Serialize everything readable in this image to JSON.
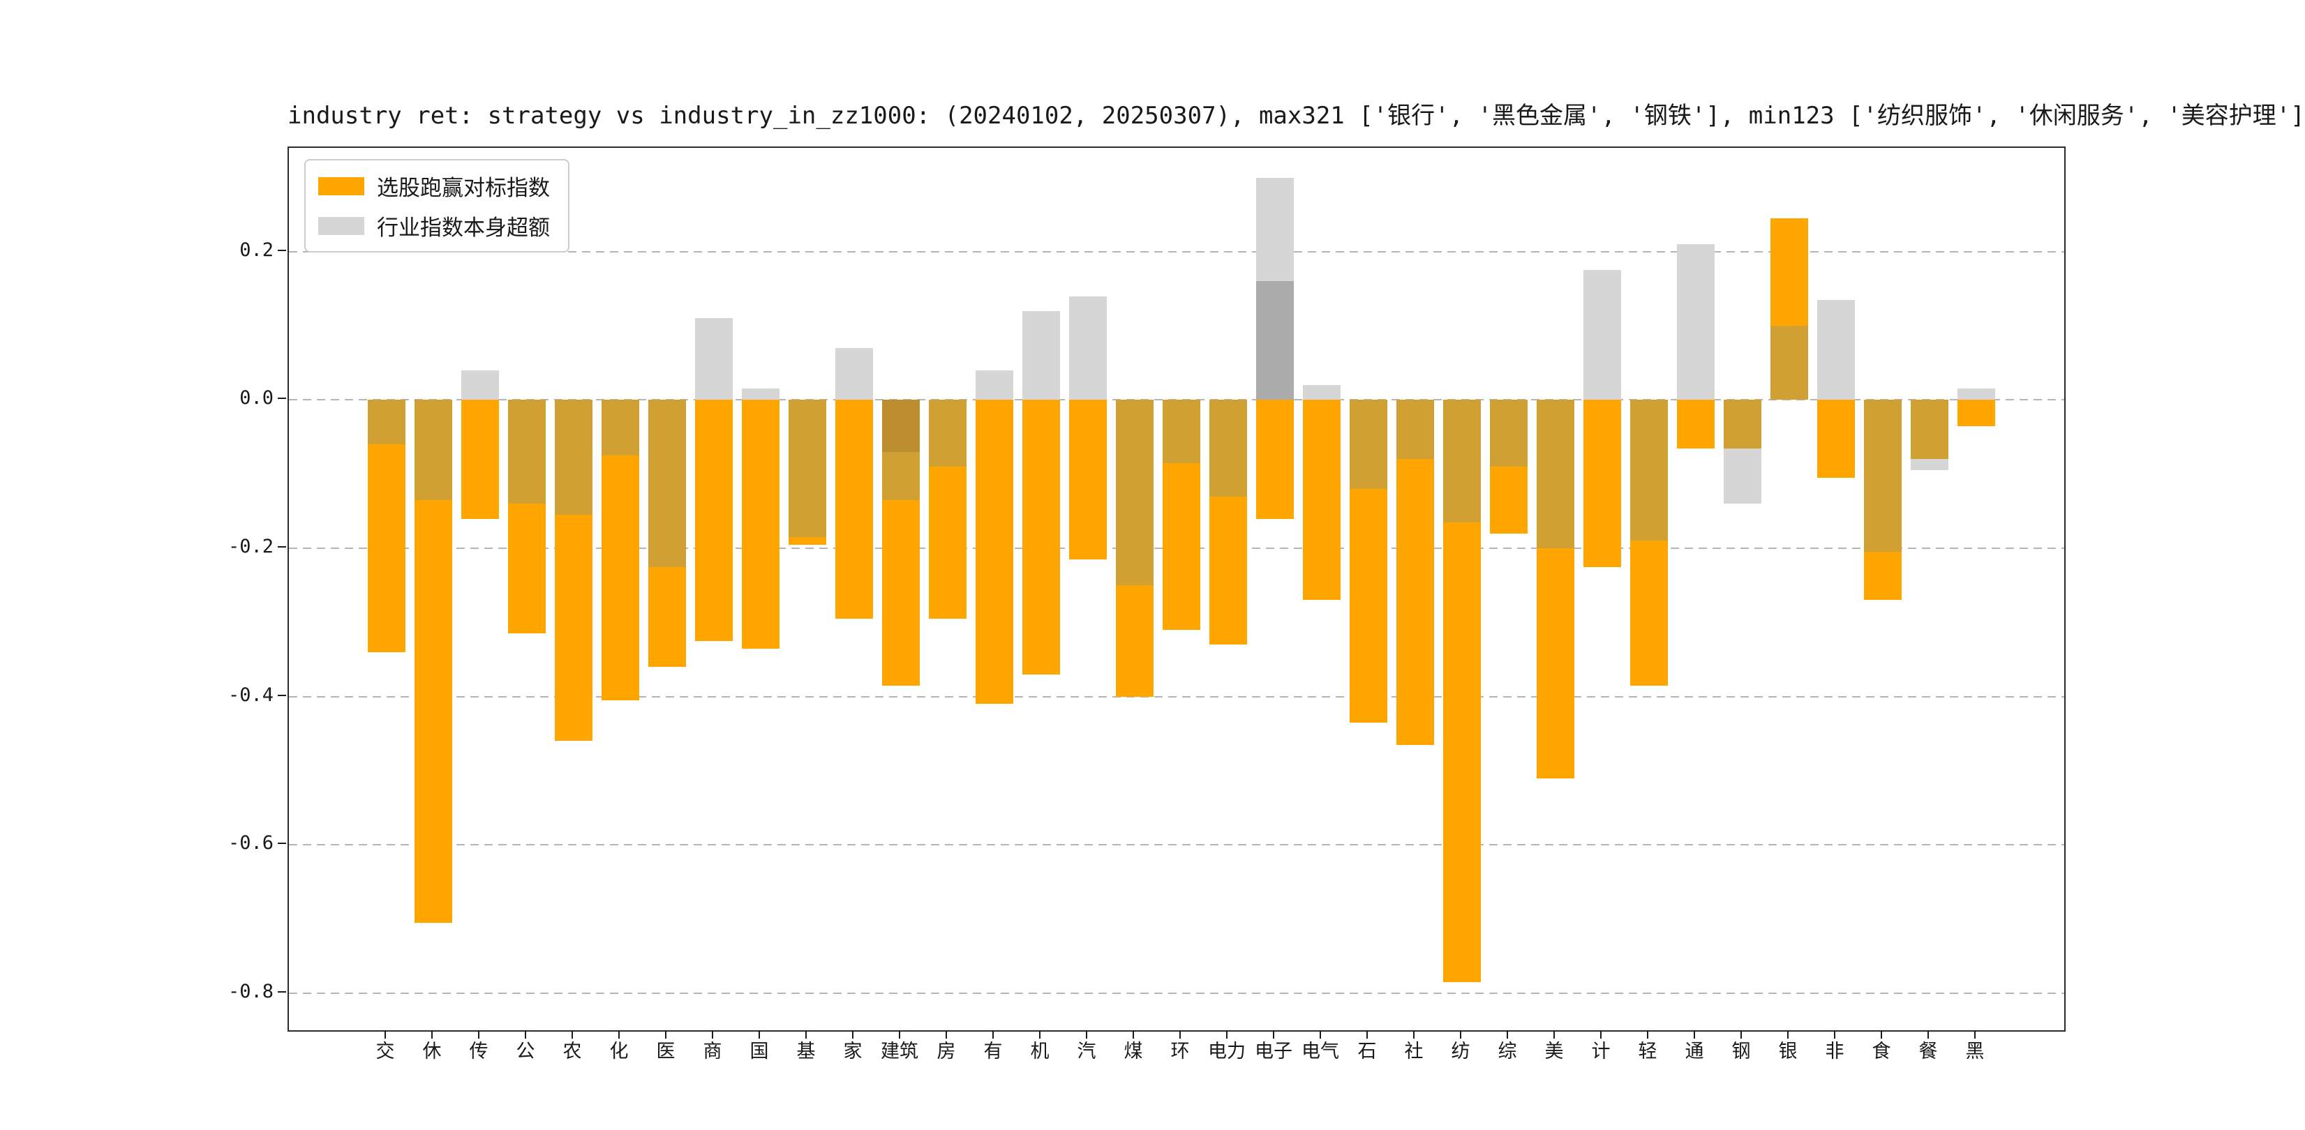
{
  "title": "industry ret: strategy vs industry_in_zz1000: (20240102, 20250307), max321 ['银行', '黑色金属', '钢铁'], min123 ['纺织服饰', '休闲服务', '美容护理']",
  "legend": {
    "items": [
      {
        "label": "选股跑赢对标指数",
        "color": "#FFA500"
      },
      {
        "label": "行业指数本身超额",
        "color": "#D6D6D6"
      }
    ]
  },
  "chart_data": {
    "type": "bar",
    "title": "industry ret: strategy vs industry_in_zz1000: (20240102, 20250307), max321 ['银行', '黑色金属', '钢铁'], min123 ['纺织服饰', '休闲服务', '美容护理']",
    "categories": [
      "交",
      "休",
      "传",
      "公",
      "农",
      "化",
      "医",
      "商",
      "国",
      "基",
      "家",
      "建筑",
      "房",
      "有",
      "机",
      "汽",
      "煤",
      "环",
      "电力",
      "电子",
      "电气",
      "石",
      "社",
      "纺",
      "综",
      "美",
      "计",
      "轻",
      "通",
      "钢",
      "银",
      "非",
      "食",
      "餐",
      "黑"
    ],
    "series": [
      {
        "name": "选股跑赢对标指数",
        "color": "#FFA500",
        "values": [
          -0.34,
          -0.705,
          -0.16,
          -0.315,
          -0.46,
          -0.405,
          -0.36,
          -0.325,
          -0.335,
          -0.195,
          -0.295,
          -0.385,
          -0.295,
          -0.41,
          -0.37,
          -0.215,
          -0.4,
          -0.31,
          -0.33,
          -0.16,
          -0.27,
          -0.435,
          -0.465,
          -0.785,
          -0.18,
          -0.51,
          -0.225,
          -0.385,
          -0.065,
          -0.065,
          0.245,
          -0.105,
          -0.27,
          -0.08,
          -0.035
        ]
      },
      {
        "name": "行业指数本身超额",
        "color": "#D6D6D6",
        "values": [
          -0.06,
          -0.135,
          0.04,
          -0.14,
          -0.155,
          -0.075,
          -0.225,
          0.11,
          0.015,
          -0.185,
          0.07,
          -0.135,
          -0.09,
          0.04,
          0.12,
          0.14,
          -0.25,
          -0.085,
          -0.13,
          0.3,
          0.02,
          -0.12,
          -0.08,
          -0.165,
          -0.09,
          -0.2,
          0.175,
          -0.19,
          0.21,
          -0.14,
          0.1,
          0.135,
          -0.205,
          -0.095,
          0.015
        ]
      }
    ],
    "overlap_color": "#D1A033",
    "extra_segments": {
      "11": [
        {
          "from": 0,
          "to": -0.07,
          "color": "#BD8E2F"
        }
      ],
      "19": [
        {
          "from": 0,
          "to": 0.16,
          "color": "#ABABAB"
        }
      ]
    },
    "y_ticks": [
      0.2,
      0.0,
      -0.2,
      -0.4,
      -0.6,
      -0.8
    ],
    "y_tick_labels": [
      "0.2",
      "0.0",
      "-0.2",
      "-0.4",
      "-0.6",
      "-0.8"
    ],
    "ylim": [
      -0.85,
      0.34
    ],
    "grid": {
      "axis": "y",
      "style": "dashed",
      "color": "#b5b5b5"
    },
    "legend_position": "upper-left",
    "bar_width_ratio": 0.8
  }
}
